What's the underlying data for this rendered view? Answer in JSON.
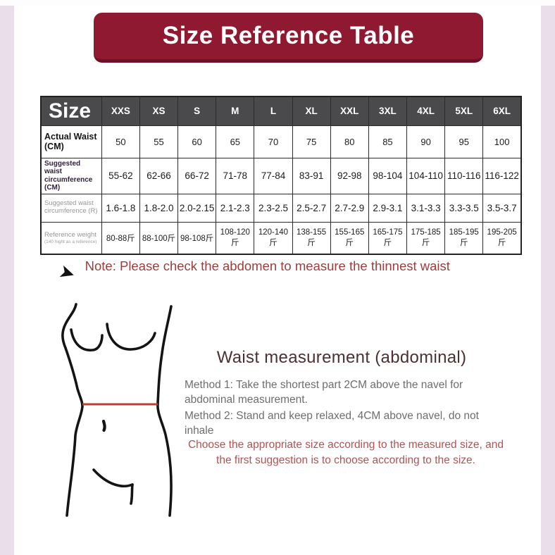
{
  "title": "Size Reference Table",
  "table": {
    "corner": "Size",
    "sizes": [
      "XXS",
      "XS",
      "S",
      "M",
      "L",
      "XL",
      "XXL",
      "3XL",
      "4XL",
      "5XL",
      "6XL"
    ],
    "rows": [
      {
        "label": "Actual Waist (CM)",
        "values": [
          "50",
          "55",
          "60",
          "65",
          "70",
          "75",
          "80",
          "85",
          "90",
          "95",
          "100"
        ]
      },
      {
        "label": "Suggested waist circumference (CM)",
        "values": [
          "55-62",
          "62-66",
          "66-72",
          "71-78",
          "77-84",
          "83-91",
          "92-98",
          "98-104",
          "104-110",
          "110-116",
          "116-122"
        ]
      },
      {
        "label": "Suggested waist circumference (R)",
        "values": [
          "1.6-1.8",
          "1.8-2.0",
          "2.0-2.15",
          "2.1-2.3",
          "2.3-2.5",
          "2.5-2.7",
          "2.7-2.9",
          "2.9-3.1",
          "3.1-3.3",
          "3.3-3.5",
          "3.5-3.7"
        ]
      },
      {
        "label": "Reference weight",
        "sublabel": "(140 hight as a reference)",
        "values": [
          "80-88斤",
          "88-100斤",
          "98-108斤",
          "108-120斤",
          "120-140斤",
          "138-155斤",
          "155-165斤",
          "165-175斤",
          "175-185斤",
          "185-195斤",
          "195-205斤"
        ]
      }
    ]
  },
  "note": {
    "icon": "arrow-pointer-icon",
    "pointer_glyph": "➤",
    "text": "Note: Please check the abdomen to measure the thinnest waist"
  },
  "measurement": {
    "heading": "Waist measurement (abdominal)",
    "method1": "Method 1: Take the shortest part 2CM above the navel for abdominal measurement.",
    "method2": "Method 2: Stand and keep relaxed, 4CM above navel, do not inhale",
    "advice": "Choose the appropriate size according to the measured size, and the first suggestion is to choose according to the size."
  },
  "figure": {
    "name": "female-torso-outline",
    "waist_line_color": "#c23b2e"
  },
  "colors": {
    "page_bg": "#e9dee9",
    "panel_bg": "#ffffff",
    "title_bg": "#8e1930",
    "table_header_bg": "#4a4a4c",
    "note_text": "#9e3c3c",
    "heading_text": "#4b3131",
    "method_text": "#6e6e6e",
    "advice_text": "#b25252"
  }
}
